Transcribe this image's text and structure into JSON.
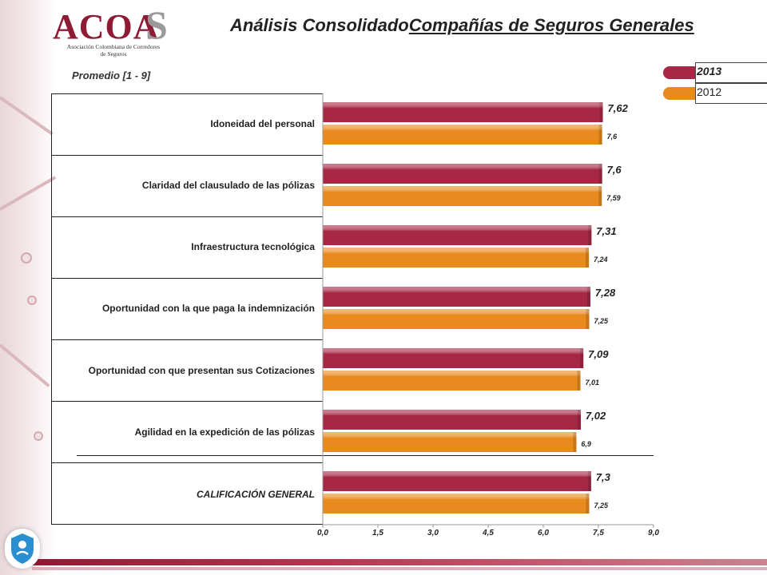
{
  "header": {
    "logo_text": "ACOA",
    "logo_s": "S",
    "logo_subtitle": "Asociación Colombiana de Corredores de Seguros",
    "title_part1": "Análisis Consolidado",
    "title_part2": "Compañías de Seguros Generales"
  },
  "colors": {
    "series_2013": "#a72845",
    "series_2012": "#e98a1e",
    "brand": "#8e1b33"
  },
  "chart_data": {
    "type": "bar",
    "orientation": "horizontal",
    "subtitle": "Promedio [1 - 9]",
    "categories": [
      "Idoneidad del personal",
      "Claridad del clausulado de las pólizas",
      "Infraestructura tecnológica",
      "Oportunidad con la que paga la indemnización",
      "Oportunidad con que presentan sus Cotizaciones",
      "Agilidad en la expedición de las pólizas",
      "CALIFICACIÓN GENERAL"
    ],
    "series": [
      {
        "name": "2013",
        "values": [
          7.62,
          7.6,
          7.31,
          7.28,
          7.09,
          7.02,
          7.3
        ],
        "labels": [
          "7,62",
          "7,6",
          "7,31",
          "7,28",
          "7,09",
          "7,02",
          "7,3"
        ]
      },
      {
        "name": "2012",
        "values": [
          7.6,
          7.59,
          7.24,
          7.25,
          7.01,
          6.9,
          7.25
        ],
        "labels": [
          "7,6",
          "7,59",
          "7,24",
          "7,25",
          "7,01",
          "6,9",
          "7,25"
        ]
      }
    ],
    "xlim": [
      0,
      9
    ],
    "xticks": [
      0,
      1.5,
      3,
      4.5,
      6,
      7.5,
      9
    ],
    "xtick_labels": [
      "0,0",
      "1,5",
      "3,0",
      "4,5",
      "6,0",
      "7,5",
      "9,0"
    ],
    "legend": "top-right",
    "grid": false
  }
}
